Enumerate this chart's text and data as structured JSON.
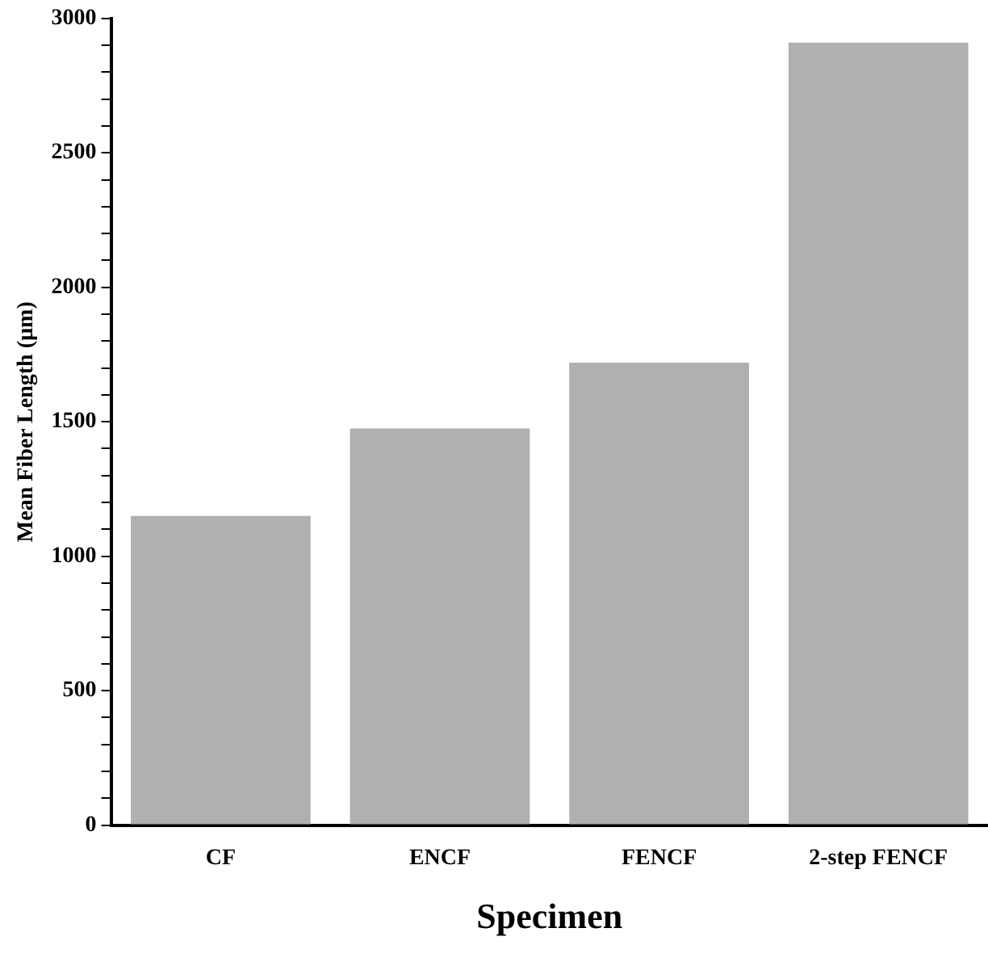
{
  "chart_data": {
    "type": "bar",
    "xlabel": "Specimen",
    "ylabel": "Mean Fiber Length (µm)",
    "categories": [
      "CF",
      "ENCF",
      "FENCF",
      "2-step FENCF"
    ],
    "values": [
      1150,
      1475,
      1720,
      2910
    ],
    "color": "#b0b0b0",
    "ylim": [
      0,
      3000
    ],
    "yticks": [
      0,
      {
        "value": 100,
        "label": null
      },
      {
        "value": 200,
        "label": null
      },
      {
        "value": 300,
        "label": null
      },
      {
        "value": 400,
        "label": null
      },
      500,
      {
        "value": 600,
        "label": null
      },
      {
        "value": 700,
        "label": null
      },
      {
        "value": 800,
        "label": null
      },
      {
        "value": 900,
        "label": null
      },
      1000,
      {
        "value": 1100,
        "label": null
      },
      {
        "value": 1200,
        "label": null
      },
      {
        "value": 1300,
        "label": null
      },
      {
        "value": 1400,
        "label": null
      },
      1500,
      {
        "value": 1600,
        "label": null
      },
      {
        "value": 1700,
        "label": null
      },
      {
        "value": 1800,
        "label": null
      },
      {
        "value": 1900,
        "label": null
      },
      2000,
      {
        "value": 2100,
        "label": null
      },
      {
        "value": 2200,
        "label": null
      },
      {
        "value": 2300,
        "label": null
      },
      {
        "value": 2400,
        "label": null
      },
      2500,
      {
        "value": 2600,
        "label": null
      },
      {
        "value": 2700,
        "label": null
      },
      {
        "value": 2800,
        "label": null
      },
      {
        "value": 2900,
        "label": null
      },
      3000
    ],
    "grid": false,
    "legend": false
  }
}
